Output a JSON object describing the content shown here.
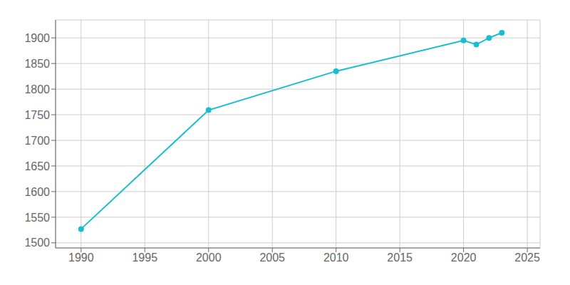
{
  "chart_data": {
    "type": "line",
    "x": [
      1990,
      2000,
      2010,
      2020,
      2021,
      2022,
      2023
    ],
    "values": [
      1527,
      1759,
      1835,
      1895,
      1887,
      1900,
      1910
    ],
    "color": "#17becf",
    "marker": "circle",
    "xlim": [
      1988,
      2026
    ],
    "ylim": [
      1490,
      1935
    ],
    "xticks": [
      1990,
      1995,
      2000,
      2005,
      2010,
      2015,
      2020,
      2025
    ],
    "yticks": [
      1500,
      1550,
      1600,
      1650,
      1700,
      1750,
      1800,
      1850,
      1900
    ],
    "grid": true
  }
}
